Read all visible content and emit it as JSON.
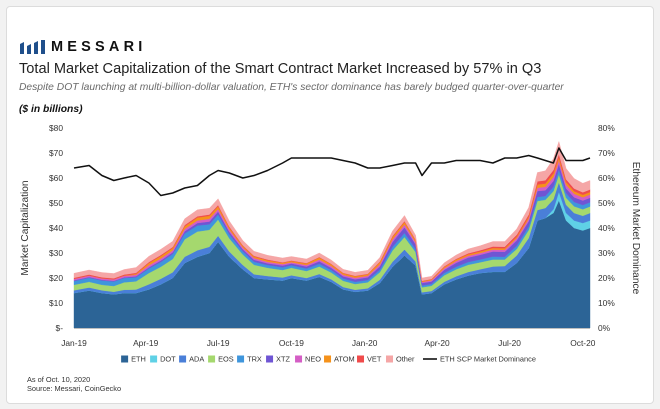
{
  "brand": {
    "name": "MESSARI",
    "logo_icon": "messari-mark-icon"
  },
  "header": {
    "title": "Total Market Capitalization of the Smart Contract Market Increased by 57% in Q3",
    "subtitle": "Despite DOT launching at multi-billion-dollar valuation, ETH's sector dominance has barely budged quarter-over-quarter",
    "units": "($ in billions)"
  },
  "footnote": {
    "as_of": "As of Oct. 10, 2020",
    "source": "Source: Messari, CoinGecko"
  },
  "chart_data": {
    "type": "area",
    "stacked": true,
    "ylabel": "Market Capitalization",
    "y2label": "Ethereum Market Dominance",
    "ylim": [
      0,
      80
    ],
    "yticks": [
      "$-",
      "$10",
      "$20",
      "$30",
      "$40",
      "$50",
      "$60",
      "$70",
      "$80"
    ],
    "y2lim": [
      0,
      80
    ],
    "y2ticks": [
      "0%",
      "10%",
      "20%",
      "30%",
      "40%",
      "50%",
      "60%",
      "70%",
      "80%"
    ],
    "xlim": [
      "2019-01-01",
      "2020-10-10"
    ],
    "xticks": [
      {
        "date": "2019-01-01",
        "label": "Jan-19"
      },
      {
        "date": "2019-04-01",
        "label": "Apr-19"
      },
      {
        "date": "2019-07-01",
        "label": "Jul-19"
      },
      {
        "date": "2019-10-01",
        "label": "Oct-19"
      },
      {
        "date": "2020-01-01",
        "label": "Jan-20"
      },
      {
        "date": "2020-04-01",
        "label": "Apr-20"
      },
      {
        "date": "2020-07-01",
        "label": "Jul-20"
      },
      {
        "date": "2020-10-01",
        "label": "Oct-20"
      }
    ],
    "grid": false,
    "legend": "bottom",
    "x": [
      "2019-01-01",
      "2019-01-20",
      "2019-02-05",
      "2019-02-20",
      "2019-03-05",
      "2019-03-20",
      "2019-04-05",
      "2019-04-20",
      "2019-05-05",
      "2019-05-20",
      "2019-06-05",
      "2019-06-20",
      "2019-07-01",
      "2019-07-15",
      "2019-08-01",
      "2019-08-15",
      "2019-09-01",
      "2019-09-20",
      "2019-10-01",
      "2019-10-20",
      "2019-11-05",
      "2019-11-20",
      "2019-12-05",
      "2019-12-20",
      "2020-01-05",
      "2020-01-20",
      "2020-02-05",
      "2020-02-20",
      "2020-03-05",
      "2020-03-13",
      "2020-03-25",
      "2020-04-10",
      "2020-04-25",
      "2020-05-10",
      "2020-05-25",
      "2020-06-10",
      "2020-06-25",
      "2020-07-10",
      "2020-07-25",
      "2020-08-05",
      "2020-08-15",
      "2020-08-25",
      "2020-09-01",
      "2020-09-10",
      "2020-09-20",
      "2020-10-01",
      "2020-10-10"
    ],
    "series": [
      {
        "name": "ETH",
        "color": "#2c6496",
        "values": [
          14,
          15,
          14,
          13.5,
          14,
          14,
          15.5,
          17.5,
          20,
          26,
          28.5,
          30,
          34.5,
          28.5,
          23.5,
          20,
          19.5,
          19,
          20,
          19,
          20.5,
          18.5,
          15.5,
          14.5,
          15,
          18,
          24.5,
          29,
          25,
          13.5,
          14,
          17.5,
          19.5,
          21,
          22,
          22.5,
          22.5,
          26,
          32,
          43,
          44,
          46,
          51,
          43,
          40,
          39,
          40
        ]
      },
      {
        "name": "DOT",
        "color": "#5fd1e6",
        "values": [
          0,
          0,
          0,
          0,
          0,
          0,
          0,
          0,
          0,
          0,
          0,
          0,
          0,
          0,
          0,
          0,
          0,
          0,
          0,
          0,
          0,
          0,
          0,
          0,
          0,
          0,
          0,
          0,
          0,
          0,
          0,
          0,
          0,
          0,
          0,
          0,
          0,
          0,
          0,
          0,
          0,
          1.5,
          3.5,
          3,
          3,
          3,
          3
        ]
      },
      {
        "name": "ADA",
        "color": "#4a7fd8",
        "values": [
          1.1,
          1.2,
          1.1,
          1.0,
          1.3,
          1.4,
          2.0,
          2.2,
          2.3,
          2.5,
          2.6,
          2.5,
          2.4,
          2.1,
          1.7,
          1.5,
          1.3,
          1.2,
          1.1,
          1.0,
          1.1,
          1.0,
          0.9,
          0.8,
          0.9,
          1.3,
          2.0,
          2.4,
          1.6,
          0.8,
          0.8,
          1.0,
          1.2,
          1.4,
          1.5,
          2.1,
          2.3,
          3.0,
          4.0,
          4.2,
          4.0,
          4.0,
          3.8,
          3.3,
          3.0,
          2.9,
          3.0
        ]
      },
      {
        "name": "EOS",
        "color": "#a5d86e",
        "values": [
          2.2,
          2.3,
          2.2,
          2.3,
          3.0,
          3.3,
          4.5,
          4.8,
          5.3,
          7.0,
          7.5,
          6.8,
          6.5,
          5.3,
          4.2,
          3.8,
          3.3,
          3.0,
          3.0,
          2.8,
          3.0,
          2.7,
          2.5,
          2.3,
          2.4,
          3.0,
          4.5,
          5.0,
          3.8,
          2.0,
          2.1,
          2.6,
          2.8,
          2.9,
          2.8,
          2.8,
          2.6,
          2.6,
          3.2,
          3.6,
          3.3,
          3.2,
          3.1,
          2.8,
          2.7,
          2.6,
          2.6
        ]
      },
      {
        "name": "TRX",
        "color": "#3f96dc",
        "values": [
          1.5,
          1.6,
          1.7,
          1.8,
          1.7,
          1.6,
          1.8,
          1.9,
          2.0,
          2.3,
          2.4,
          2.2,
          2.0,
          1.6,
          1.3,
          1.2,
          1.1,
          1.1,
          1.0,
          1.0,
          1.1,
          1.0,
          0.9,
          0.9,
          0.9,
          1.0,
          1.4,
          1.6,
          1.2,
          0.7,
          0.7,
          0.9,
          1.0,
          1.1,
          1.1,
          1.2,
          1.1,
          1.3,
          1.4,
          1.6,
          1.5,
          1.8,
          2.0,
          1.8,
          1.7,
          1.7,
          1.7
        ]
      },
      {
        "name": "XTZ",
        "color": "#6f55d4",
        "values": [
          0.3,
          0.3,
          0.3,
          0.3,
          0.3,
          0.4,
          0.5,
          0.6,
          0.7,
          0.9,
          1.0,
          1.1,
          1.2,
          1.0,
          0.8,
          0.8,
          0.7,
          0.7,
          0.7,
          0.8,
          1.0,
          0.9,
          0.9,
          1.0,
          1.1,
          1.3,
          2.0,
          2.3,
          1.9,
          1.0,
          1.0,
          1.3,
          1.6,
          1.8,
          1.9,
          2.0,
          2.0,
          2.1,
          2.1,
          2.4,
          2.3,
          2.3,
          2.2,
          2.0,
          1.9,
          1.8,
          1.8
        ]
      },
      {
        "name": "NEO",
        "color": "#d45ec5",
        "values": [
          0.6,
          0.6,
          0.6,
          0.6,
          0.6,
          0.6,
          0.8,
          0.8,
          0.8,
          0.9,
          1.0,
          1.1,
          1.0,
          0.9,
          0.7,
          0.7,
          0.6,
          0.6,
          0.5,
          0.6,
          0.7,
          0.7,
          0.6,
          0.6,
          0.6,
          0.8,
          1.0,
          1.1,
          0.8,
          0.4,
          0.5,
          0.6,
          0.7,
          0.7,
          0.7,
          0.8,
          0.8,
          0.9,
          1.0,
          1.3,
          1.4,
          1.6,
          1.5,
          1.4,
          1.4,
          1.3,
          1.3
        ]
      },
      {
        "name": "ATOM",
        "color": "#f5921b",
        "values": [
          0,
          0,
          0,
          0,
          0.1,
          0.4,
          0.9,
          1.0,
          0.9,
          1.1,
          1.2,
          1.2,
          1.1,
          0.8,
          0.6,
          0.6,
          0.6,
          0.5,
          0.5,
          0.6,
          0.8,
          0.7,
          0.6,
          0.6,
          0.6,
          0.9,
          1.0,
          1.0,
          0.8,
          0.3,
          0.3,
          0.5,
          0.6,
          0.6,
          0.6,
          0.6,
          0.6,
          0.6,
          0.8,
          1.3,
          1.3,
          1.4,
          1.2,
          1.1,
          1.0,
          1.0,
          1.0
        ]
      },
      {
        "name": "VET",
        "color": "#f04b4b",
        "values": [
          0.4,
          0.4,
          0.4,
          0.4,
          0.4,
          0.4,
          0.4,
          0.4,
          0.4,
          0.5,
          0.5,
          0.5,
          0.5,
          0.4,
          0.3,
          0.3,
          0.3,
          0.2,
          0.2,
          0.2,
          0.2,
          0.2,
          0.2,
          0.2,
          0.2,
          0.3,
          0.4,
          0.4,
          0.3,
          0.2,
          0.2,
          0.3,
          0.3,
          0.4,
          0.5,
          0.6,
          0.6,
          0.8,
          0.9,
          1.3,
          1.3,
          1.4,
          1.3,
          1.1,
          1.1,
          1.0,
          1.0
        ]
      },
      {
        "name": "Other",
        "color": "#f5a6a6",
        "values": [
          1.8,
          1.8,
          1.9,
          1.9,
          2.0,
          2.1,
          2.3,
          2.3,
          2.3,
          2.5,
          2.6,
          2.5,
          2.5,
          2.2,
          1.9,
          1.8,
          1.7,
          1.7,
          1.6,
          1.6,
          1.6,
          1.5,
          1.4,
          1.4,
          1.4,
          1.6,
          2.0,
          2.2,
          1.7,
          1.1,
          1.1,
          1.4,
          1.5,
          1.7,
          1.8,
          2.0,
          2.1,
          2.3,
          2.8,
          3.5,
          3.8,
          4.5,
          5.0,
          4.3,
          4.0,
          3.6,
          3.6
        ]
      }
    ],
    "dominance": {
      "name": "ETH SCP Market Dominance",
      "color": "#111111",
      "axis": "right",
      "values": [
        64,
        65,
        61,
        59,
        60,
        61,
        58,
        53,
        54,
        56,
        57,
        61,
        63,
        62,
        60,
        61,
        63,
        66,
        68,
        68,
        68,
        68,
        67,
        66,
        64,
        64,
        65,
        66,
        66,
        61,
        66,
        66,
        67,
        67,
        67,
        66,
        68,
        68,
        69,
        68,
        67,
        66,
        72,
        67,
        67,
        67,
        68
      ]
    }
  }
}
